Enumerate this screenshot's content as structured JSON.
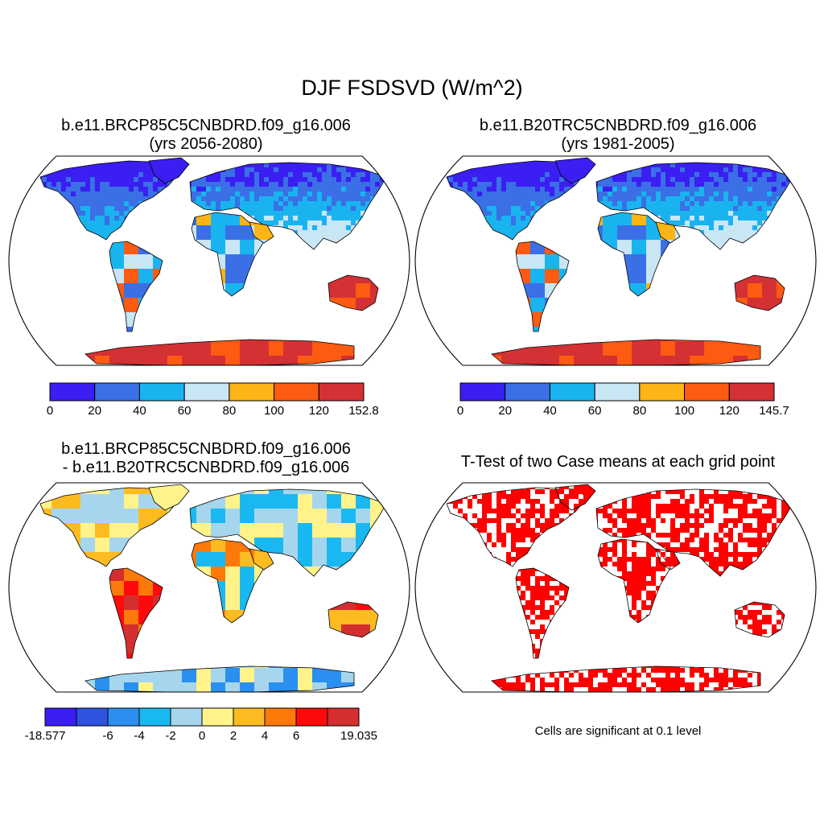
{
  "title": "DJF FSDSVD (W/m^2)",
  "panels": [
    {
      "title_line1": "b.e11.BRCP85C5CNBDRD.f09_g16.006",
      "title_line2": "(yrs 2056-2080)",
      "colorbar": {
        "colors": [
          "#3b1ef2",
          "#3a6fe6",
          "#19b4f0",
          "#c9e6f5",
          "#fdb515",
          "#fd5a12",
          "#d33134"
        ],
        "labels": [
          "0",
          "20",
          "40",
          "60",
          "80",
          "100",
          "120",
          "152.8"
        ]
      }
    },
    {
      "title_line1": "b.e11.B20TRC5CNBDRD.f09_g16.006",
      "title_line2": "(yrs 1981-2005)",
      "colorbar": {
        "colors": [
          "#3b1ef2",
          "#3a6fe6",
          "#19b4f0",
          "#c9e6f5",
          "#fdb515",
          "#fd5a12",
          "#d33134"
        ],
        "labels": [
          "0",
          "20",
          "40",
          "60",
          "80",
          "100",
          "120",
          "145.7"
        ]
      }
    },
    {
      "title_line1": "b.e11.BRCP85C5CNBDRD.f09_g16.006",
      "title_line2": "- b.e11.B20TRC5CNBDRD.f09_g16.006",
      "colorbar": {
        "colors": [
          "#3b1ef2",
          "#2f52e0",
          "#2b8ff0",
          "#1ab8f0",
          "#a6d6ee",
          "#fff38a",
          "#fdbb22",
          "#fd7a0a",
          "#ff0a0a",
          "#d32f2f"
        ],
        "labels": [
          "-18.577",
          "",
          "-6",
          "-4",
          "-2",
          "0",
          "2",
          "4",
          "6",
          "",
          "19.035"
        ]
      }
    },
    {
      "title_line1": "T-Test of two Case means at each grid point",
      "note": "Cells are significant at 0.1 level"
    }
  ]
}
